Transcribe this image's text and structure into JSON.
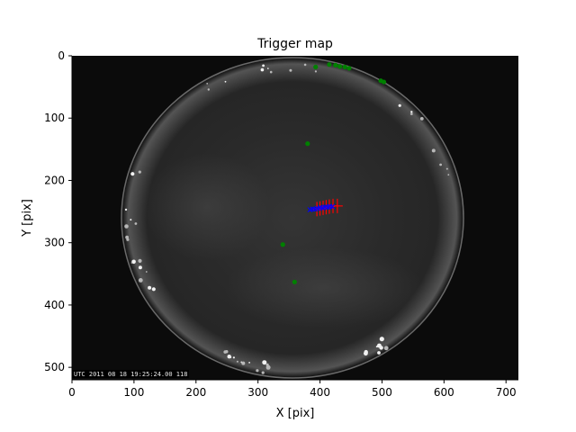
{
  "chart_data": {
    "type": "scatter",
    "title": "Trigger map",
    "xlabel": "X [pix]",
    "ylabel": "Y [pix]",
    "xlim": [
      0,
      720
    ],
    "ylim": [
      0,
      520
    ],
    "y_inverted": true,
    "xticks": [
      0,
      100,
      200,
      300,
      400,
      500,
      600,
      700
    ],
    "yticks": [
      0,
      100,
      200,
      300,
      400,
      500
    ],
    "background": "night-sky all-sky camera image",
    "overlay_text": "UTC 2011 08 18 19:25:24.00 118",
    "series": [
      {
        "marker": "circle",
        "color": "#008000",
        "points": [
          {
            "x": 393,
            "y": 18
          },
          {
            "x": 415,
            "y": 14
          },
          {
            "x": 425,
            "y": 15
          },
          {
            "x": 432,
            "y": 17
          },
          {
            "x": 440,
            "y": 18
          },
          {
            "x": 447,
            "y": 20
          },
          {
            "x": 498,
            "y": 40
          },
          {
            "x": 503,
            "y": 42
          },
          {
            "x": 380,
            "y": 141
          },
          {
            "x": 340,
            "y": 303
          },
          {
            "x": 359,
            "y": 363
          }
        ]
      },
      {
        "marker": "plus",
        "color": "#ff0000",
        "points": [
          {
            "x": 395,
            "y": 246
          },
          {
            "x": 400,
            "y": 245
          },
          {
            "x": 405,
            "y": 244
          },
          {
            "x": 410,
            "y": 243
          },
          {
            "x": 415,
            "y": 242
          },
          {
            "x": 421,
            "y": 241
          },
          {
            "x": 428,
            "y": 241
          }
        ]
      },
      {
        "marker": "cross",
        "color": "#0000ff",
        "points": [
          {
            "x": 384,
            "y": 247
          },
          {
            "x": 388,
            "y": 246
          },
          {
            "x": 392,
            "y": 246
          },
          {
            "x": 396,
            "y": 245
          },
          {
            "x": 400,
            "y": 244
          },
          {
            "x": 404,
            "y": 244
          },
          {
            "x": 408,
            "y": 243
          },
          {
            "x": 412,
            "y": 243
          },
          {
            "x": 416,
            "y": 242
          },
          {
            "x": 420,
            "y": 242
          }
        ]
      }
    ]
  }
}
